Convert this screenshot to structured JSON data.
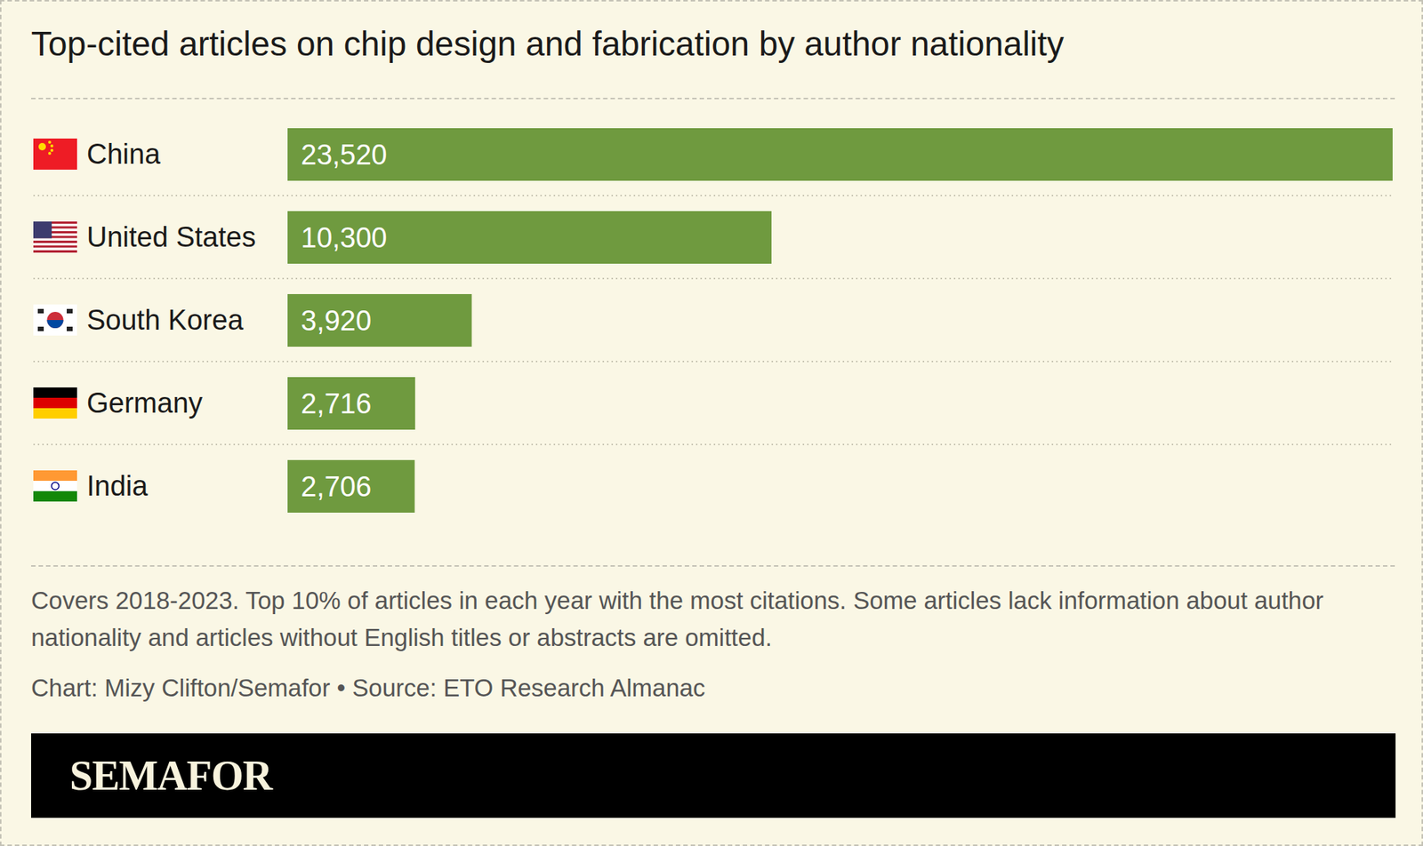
{
  "chart_data": {
    "type": "bar",
    "title": "Top-cited articles on chip design and fabrication by author nationality",
    "categories": [
      "China",
      "United States",
      "South Korea",
      "Germany",
      "India"
    ],
    "values": [
      23520,
      10300,
      3920,
      2716,
      2706
    ],
    "value_labels": [
      "23,520",
      "10,300",
      "3,920",
      "2,716",
      "2,706"
    ],
    "color": "#6f9a3f",
    "orientation": "horizontal",
    "data_labels": true,
    "xlim": [
      0,
      23520
    ],
    "xticks": [],
    "tick_labels": "y",
    "grid": false,
    "notes": [
      "Covers 2018-2023. Top 10% of articles in each year with the most citations. Some articles lack information about author nationality and articles without English titles or abstracts are omitted.",
      "Chart: Mizy Clifton/Semafor • Source: ETO Research Almanac"
    ],
    "logo": "SEMAFOR"
  }
}
